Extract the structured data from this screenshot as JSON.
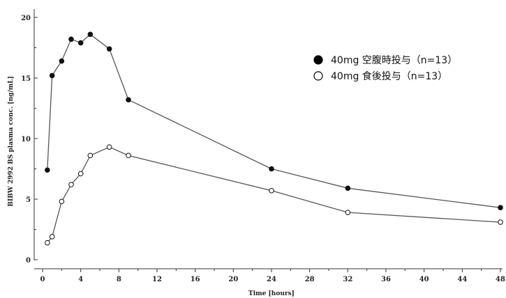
{
  "chart_data": {
    "type": "line",
    "title": "",
    "xlabel": "Time [hours]",
    "ylabel": "BIBW 2992 BS plasma conc. [ng/mL]",
    "xlim": [
      0,
      48
    ],
    "ylim": [
      0,
      20
    ],
    "x_ticks": [
      0,
      4,
      8,
      12,
      16,
      20,
      24,
      28,
      32,
      36,
      40,
      44,
      48
    ],
    "y_ticks": [
      0,
      5,
      10,
      15,
      20
    ],
    "grid": false,
    "legend_position": "top-right",
    "series": [
      {
        "name": "40mg 空腹時投与（n=13）",
        "marker": "filled-circle",
        "color": "#111111",
        "x": [
          0.5,
          1,
          2,
          3,
          4,
          5,
          7,
          9,
          24,
          32,
          48
        ],
        "y": [
          7.4,
          15.2,
          16.4,
          18.2,
          17.9,
          18.6,
          17.4,
          13.2,
          7.5,
          5.9,
          4.3
        ]
      },
      {
        "name": "40mg 食後投与（n=13）",
        "marker": "open-circle",
        "color": "#111111",
        "x": [
          0.5,
          1,
          2,
          3,
          4,
          5,
          7,
          9,
          24,
          32,
          48
        ],
        "y": [
          1.4,
          1.9,
          4.8,
          6.2,
          7.1,
          8.6,
          9.3,
          8.6,
          5.7,
          3.9,
          3.1
        ]
      }
    ]
  }
}
